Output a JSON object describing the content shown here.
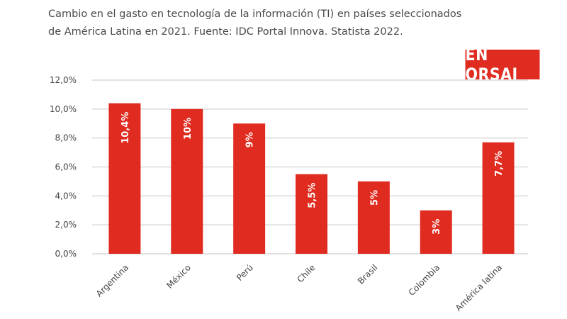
{
  "header": {
    "title_line1": "Cambio en el gasto en tecnología de la información (TI) en países seleccionados",
    "title_line2": "de América Latina en 2021. Fuente: IDC Portal Innova. Statista 2022."
  },
  "brand": {
    "text": "EN ORSAI",
    "color": "#e02b20"
  },
  "chart_data": {
    "type": "bar",
    "title": "Cambio en el gasto en tecnología de la información (TI) en países seleccionados de América Latina en 2021. Fuente: IDC Portal Innova. Statista 2022.",
    "categories": [
      "Argentina",
      "México",
      "Perú",
      "Chile",
      "Brasil",
      "Colombia",
      "América latina"
    ],
    "values": [
      10.4,
      10,
      9,
      5.5,
      5,
      3,
      7.7
    ],
    "data_labels": [
      "10,4%",
      "10%",
      "9%",
      "5,5%",
      "5%",
      "3%",
      "7,7%"
    ],
    "yticks": [
      "0,0%",
      "2,0%",
      "4,0%",
      "6,0%",
      "8,0%",
      "10,0%",
      "12,0%"
    ],
    "ylim": [
      0,
      12
    ],
    "ytick_step": 2,
    "xlabel": "",
    "ylabel": "",
    "grid": true,
    "bar_color": "#e02b20",
    "grid_color": "#d9d9d9"
  }
}
